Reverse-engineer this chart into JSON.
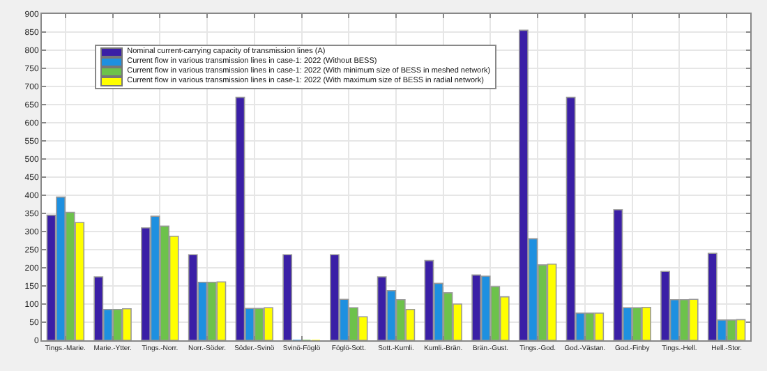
{
  "chart_data": {
    "type": "bar",
    "categories": [
      "Tings.-Marie.",
      "Marie.-Ytter.",
      "Tings.-Norr.",
      "Norr.-Söder.",
      "Söder.-Svinö",
      "Svinö-Föglö",
      "Föglö-Sott.",
      "Sott.-Kumli.",
      "Kumli.-Brän.",
      "Brän.-Gust.",
      "Tings.-God.",
      "God.-Västan.",
      "God.-Finby",
      "Tings.-Hell.",
      "Hell.-Stor."
    ],
    "series": [
      {
        "name": "Nominal current-carrying capacity of transmission lines (A)",
        "color": "#3a1fa6",
        "values": [
          345,
          175,
          310,
          236,
          670,
          236,
          236,
          175,
          220,
          180,
          855,
          670,
          360,
          190,
          240
        ]
      },
      {
        "name": "Current flow in various transmission lines in case-1: 2022 (Without BESS)",
        "color": "#1e90e0",
        "values": [
          395,
          85,
          342,
          160,
          88,
          0,
          113,
          137,
          157,
          177,
          280,
          75,
          90,
          112,
          56
        ]
      },
      {
        "name": "Current flow in various transmission lines in case-1: 2022 (With minimum size of BESS in meshed network)",
        "color": "#6dc24b",
        "values": [
          353,
          85,
          315,
          160,
          88,
          0,
          90,
          112,
          131,
          148,
          208,
          75,
          90,
          112,
          56
        ]
      },
      {
        "name": "Current flow in various transmission lines in case-1: 2022 (With maximum size of BESS in radial network)",
        "color": "#ffff00",
        "values": [
          325,
          87,
          287,
          161,
          90,
          0,
          65,
          85,
          100,
          120,
          210,
          75,
          91,
          113,
          57
        ]
      }
    ],
    "ylim": [
      0,
      900
    ],
    "yticks": [
      0,
      50,
      100,
      150,
      200,
      250,
      300,
      350,
      400,
      450,
      500,
      550,
      600,
      650,
      700,
      750,
      800,
      850,
      900
    ],
    "grid": true,
    "legend": "top left"
  }
}
